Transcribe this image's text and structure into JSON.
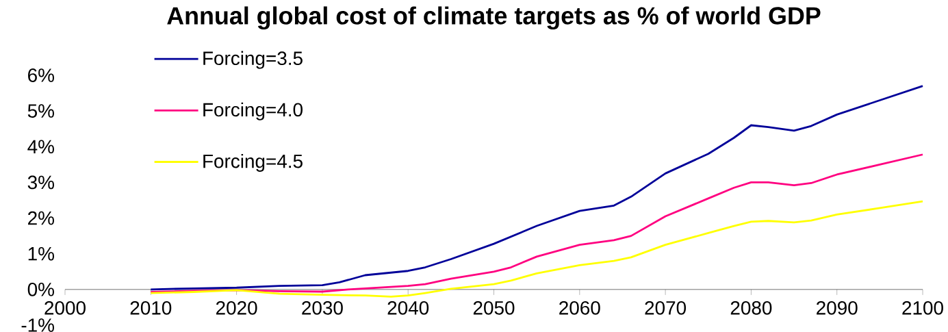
{
  "chart_data": {
    "type": "line",
    "title": "Annual global cost of climate targets as % of world GDP",
    "series": [
      {
        "name": "Forcing=3.5",
        "color": "#000099",
        "x": [
          2010,
          2015,
          2020,
          2025,
          2030,
          2032,
          2035,
          2040,
          2042,
          2045,
          2050,
          2055,
          2060,
          2064,
          2066,
          2070,
          2075,
          2078,
          2080,
          2082,
          2085,
          2087,
          2090,
          2095,
          2100
        ],
        "values": [
          0.0,
          0.03,
          0.05,
          0.1,
          0.12,
          0.2,
          0.4,
          0.52,
          0.62,
          0.85,
          1.28,
          1.78,
          2.2,
          2.35,
          2.6,
          3.25,
          3.8,
          4.25,
          4.6,
          4.55,
          4.45,
          4.58,
          4.9,
          5.3,
          5.7
        ]
      },
      {
        "name": "Forcing=4.0",
        "color": "#ff0080",
        "x": [
          2010,
          2015,
          2020,
          2025,
          2030,
          2033,
          2035,
          2040,
          2042,
          2045,
          2050,
          2052,
          2055,
          2060,
          2064,
          2066,
          2070,
          2075,
          2078,
          2080,
          2082,
          2085,
          2087,
          2090,
          2095,
          2100
        ],
        "values": [
          -0.07,
          -0.04,
          -0.02,
          -0.05,
          -0.06,
          0.0,
          0.03,
          0.1,
          0.15,
          0.3,
          0.5,
          0.62,
          0.92,
          1.25,
          1.38,
          1.5,
          2.05,
          2.55,
          2.85,
          3.0,
          3.0,
          2.92,
          2.98,
          3.22,
          3.5,
          3.78
        ]
      },
      {
        "name": "Forcing=4.5",
        "color": "#ffff00",
        "x": [
          2010,
          2015,
          2020,
          2025,
          2030,
          2035,
          2038,
          2040,
          2042,
          2045,
          2050,
          2052,
          2055,
          2060,
          2064,
          2066,
          2070,
          2075,
          2078,
          2080,
          2082,
          2085,
          2087,
          2090,
          2095,
          2100
        ],
        "values": [
          -0.1,
          -0.07,
          -0.02,
          -0.12,
          -0.15,
          -0.17,
          -0.2,
          -0.17,
          -0.1,
          0.02,
          0.15,
          0.25,
          0.45,
          0.68,
          0.8,
          0.9,
          1.25,
          1.58,
          1.78,
          1.9,
          1.92,
          1.88,
          1.93,
          2.1,
          2.28,
          2.47
        ]
      }
    ],
    "xlim": [
      2000,
      2100
    ],
    "xticks": [
      2000,
      2010,
      2020,
      2030,
      2040,
      2050,
      2060,
      2070,
      2080,
      2090,
      2100
    ],
    "ylim": [
      -1,
      6
    ],
    "yticks": [
      {
        "value": -1,
        "label": "-1%"
      },
      {
        "value": 0,
        "label": "0%"
      },
      {
        "value": 1,
        "label": "1%"
      },
      {
        "value": 2,
        "label": "2%"
      },
      {
        "value": 3,
        "label": "3%"
      },
      {
        "value": 4,
        "label": "4%"
      },
      {
        "value": 5,
        "label": "5%"
      },
      {
        "value": 6,
        "label": "6%"
      }
    ],
    "legend": "top left"
  }
}
